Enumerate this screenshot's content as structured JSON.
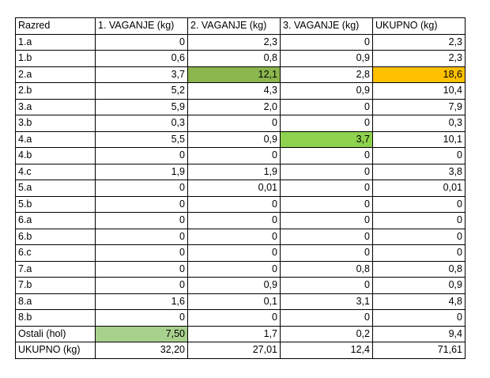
{
  "colors": {
    "highlight_dark_green": "#8CB64E",
    "highlight_bright_green": "#8ED24E",
    "highlight_light_green": "#A9D18E",
    "highlight_orange": "#FFC000"
  },
  "table": {
    "headers": [
      "Razred",
      "1. VAGANJE (kg)",
      "2. VAGANJE (kg)",
      "3. VAGANJE (kg)",
      "UKUPNO (kg)"
    ],
    "rows": [
      [
        "1.a",
        "0",
        "2,3",
        "0",
        "2,3"
      ],
      [
        "1.b",
        "0,6",
        "0,8",
        "0,9",
        "2,3"
      ],
      [
        "2.a",
        "3,7",
        "12,1",
        "2,8",
        "18,6"
      ],
      [
        "2.b",
        "5,2",
        "4,3",
        "0,9",
        "10,4"
      ],
      [
        "3.a",
        "5,9",
        "2,0",
        "0",
        "7,9"
      ],
      [
        "3.b",
        "0,3",
        "0",
        "0",
        "0,3"
      ],
      [
        "4.a",
        "5,5",
        "0,9",
        "3,7",
        "10,1"
      ],
      [
        "4.b",
        "0",
        "0",
        "0",
        "0"
      ],
      [
        "4.c",
        "1,9",
        "1,9",
        "0",
        "3,8"
      ],
      [
        "5.a",
        "0",
        "0,01",
        "0",
        "0,01"
      ],
      [
        "5.b",
        "0",
        "0",
        "0",
        "0"
      ],
      [
        "6.a",
        "0",
        "0",
        "0",
        "0"
      ],
      [
        "6.b",
        "0",
        "0",
        "0",
        "0"
      ],
      [
        "6.c",
        "0",
        "0",
        "0",
        "0"
      ],
      [
        "7.a",
        "0",
        "0",
        "0,8",
        "0,8"
      ],
      [
        "7.b",
        "0",
        "0,9",
        "0",
        "0,9"
      ],
      [
        "8.a",
        "1,6",
        "0,1",
        "3,1",
        "4,8"
      ],
      [
        "8.b",
        "0",
        "0",
        "0",
        "0"
      ],
      [
        "Ostali (hol)",
        "7,50",
        "1,7",
        "0,2",
        "9,4"
      ],
      [
        "UKUPNO (kg)",
        "32,20",
        "27,01",
        "12,4",
        "71,61"
      ]
    ]
  }
}
